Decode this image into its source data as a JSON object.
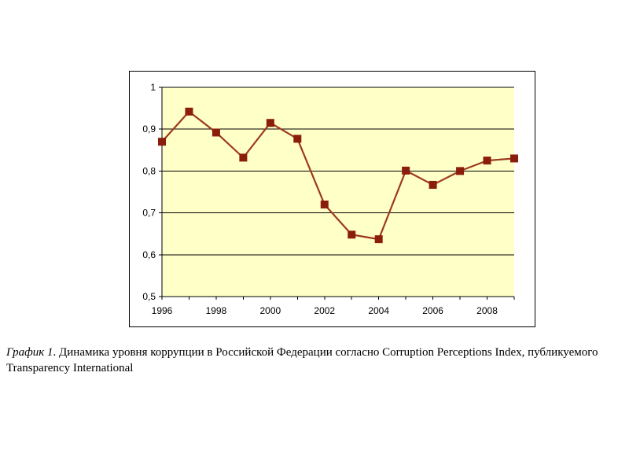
{
  "chart_data": {
    "type": "line",
    "x": [
      1996,
      1997,
      1998,
      1999,
      2000,
      2001,
      2002,
      2003,
      2004,
      2005,
      2006,
      2007,
      2008,
      2009
    ],
    "series": [
      {
        "values": [
          0.87,
          0.942,
          0.892,
          0.832,
          0.915,
          0.877,
          0.72,
          0.648,
          0.637,
          0.801,
          0.767,
          0.8,
          0.825,
          0.83
        ]
      }
    ],
    "x_ticks": [
      "1996",
      "1998",
      "2000",
      "2002",
      "2004",
      "2006",
      "2008"
    ],
    "y_ticks": [
      "0,5",
      "0,6",
      "0,7",
      "0,8",
      "0,9",
      "1"
    ],
    "xlim": [
      1996,
      2009
    ],
    "ylim": [
      0.5,
      1
    ],
    "grid": "horizontal",
    "legend": "none",
    "colors": {
      "plot_background": "#ffffc8",
      "line": "#9c3a1e",
      "marker": "#8b1d0c",
      "grid": "#000000"
    }
  },
  "caption": {
    "label": "График 1",
    "text": ". Динамика уровня коррупции в Российской Федерации согласно Corruption Perceptions Index, публикуемого Transparency International"
  }
}
